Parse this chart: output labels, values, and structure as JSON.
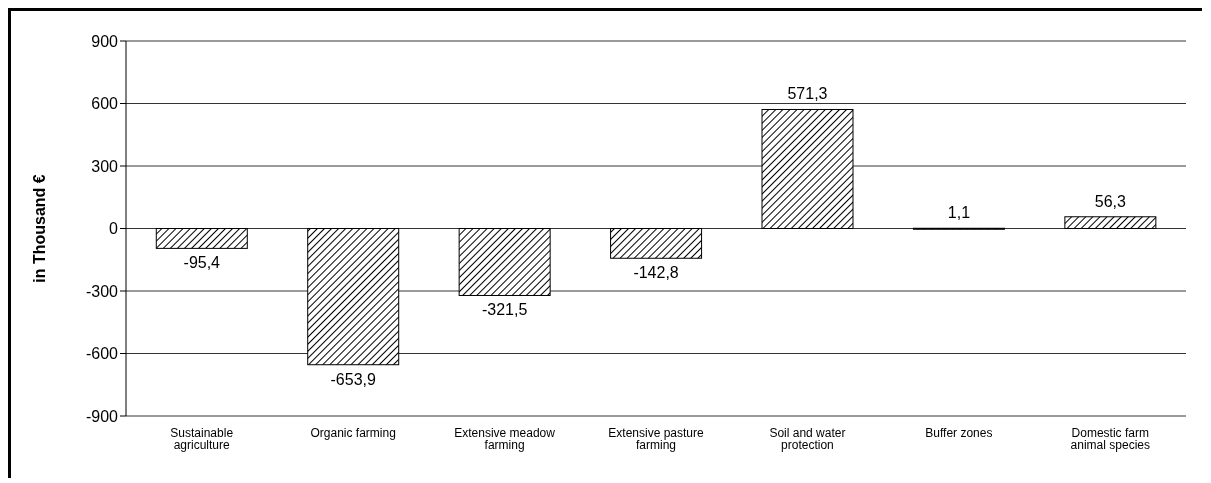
{
  "chart_data": {
    "type": "bar",
    "ylabel": "in Thousand €",
    "categories": [
      "Sustainable agriculture",
      "Organic farming",
      "Extensive meadow farming",
      "Extensive pasture farming",
      "Soil and water protection",
      "Buffer zones",
      "Domestic farm animal species"
    ],
    "values": [
      -95.4,
      -653.9,
      -321.5,
      -142.8,
      571.3,
      1.1,
      56.3
    ],
    "value_labels": [
      "-95,4",
      "-653,9",
      "-321,5",
      "-142,8",
      "571,3",
      "1,1",
      "56,3"
    ],
    "color": "#000000",
    "ylim": [
      -900,
      900
    ],
    "yticks": [
      -900,
      -600,
      -300,
      0,
      300,
      600,
      900
    ],
    "grid": "y"
  }
}
